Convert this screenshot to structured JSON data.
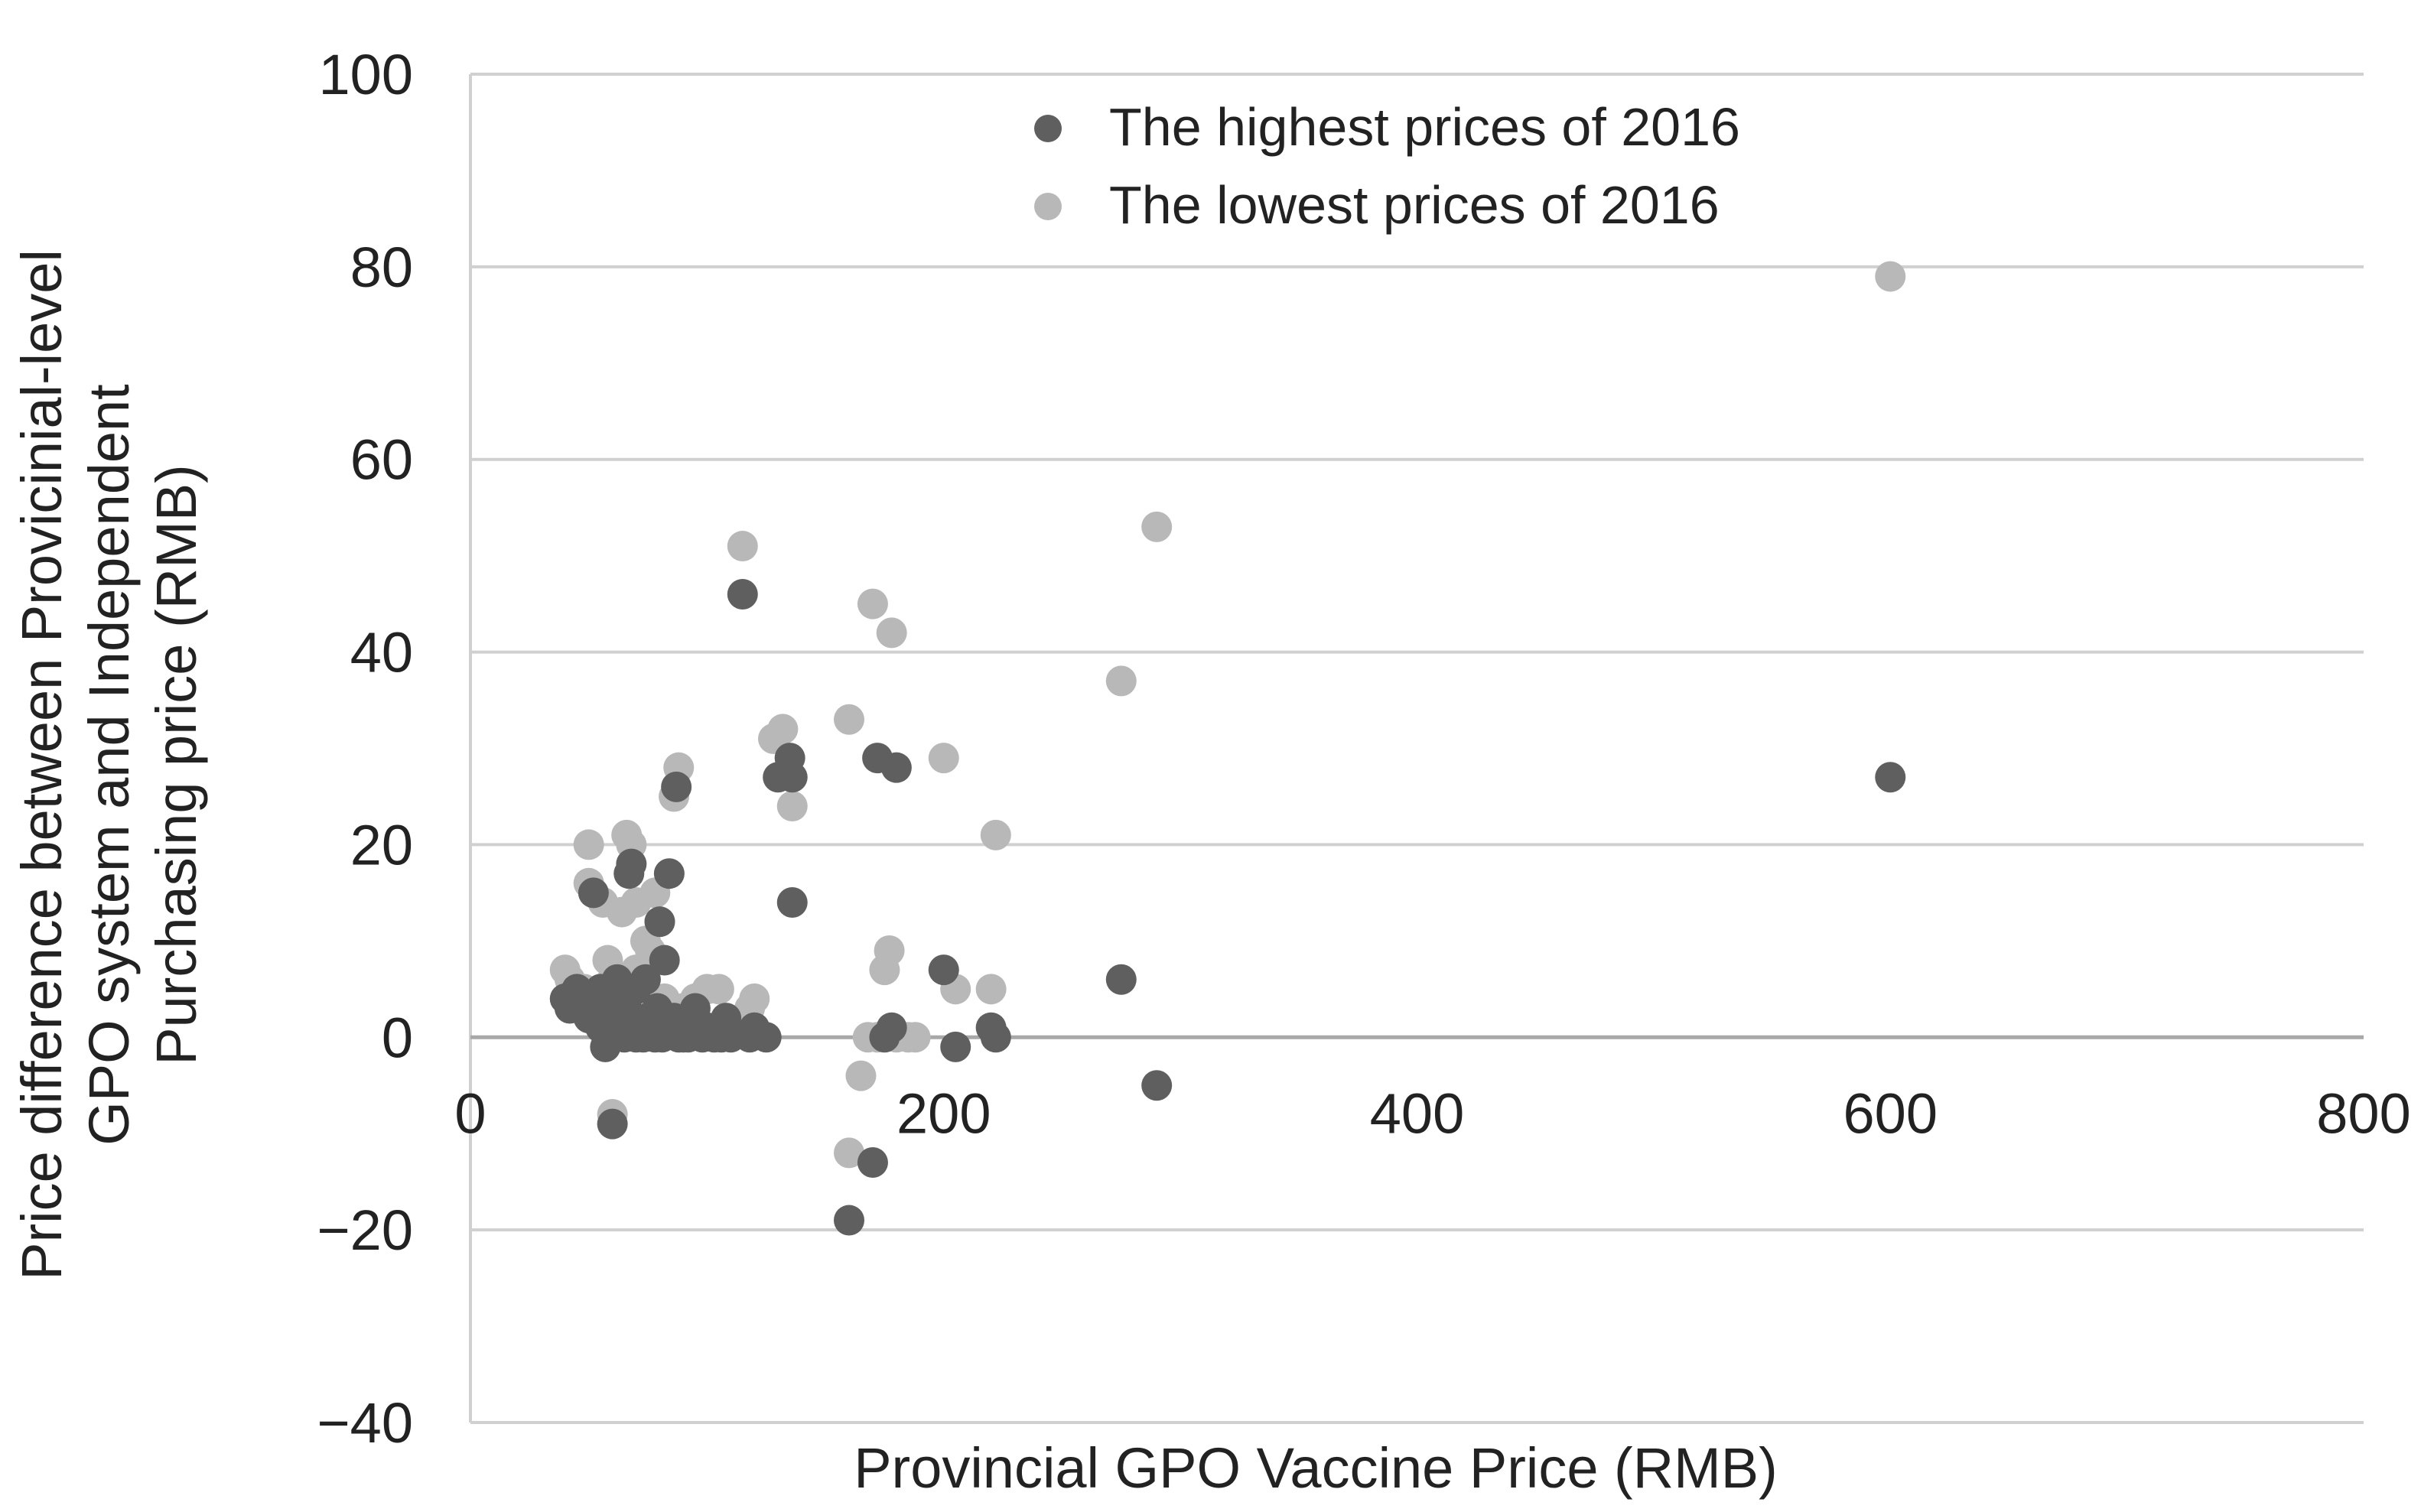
{
  "chart_data": {
    "type": "scatter",
    "title": "",
    "xlabel": "Provincial GPO Vaccine Price (RMB)",
    "ylabel_lines": [
      "Price difference between Provicinial-level",
      "GPO system and Independent",
      "Purchasing price (RMB)"
    ],
    "xlim": [
      0,
      800
    ],
    "ylim": [
      -40,
      100
    ],
    "x_ticks": [
      {
        "value": 0,
        "label": "0"
      },
      {
        "value": 200,
        "label": "200"
      },
      {
        "value": 400,
        "label": "400"
      },
      {
        "value": 600,
        "label": "600"
      },
      {
        "value": 800,
        "label": "800"
      }
    ],
    "y_ticks": [
      {
        "value": -40,
        "label": "−40"
      },
      {
        "value": -20,
        "label": "−20"
      },
      {
        "value": 0,
        "label": "0"
      },
      {
        "value": 20,
        "label": "20"
      },
      {
        "value": 40,
        "label": "40"
      },
      {
        "value": 60,
        "label": "60"
      },
      {
        "value": 80,
        "label": "80"
      },
      {
        "value": 100,
        "label": "100"
      }
    ],
    "grid": "horizontal",
    "legend_position": "top-center",
    "series": [
      {
        "name": "The highest prices of 2016",
        "color": "#5f5f5f",
        "points": [
          [
            40,
            4
          ],
          [
            42,
            3
          ],
          [
            45,
            5
          ],
          [
            48,
            4
          ],
          [
            50,
            2
          ],
          [
            52,
            15
          ],
          [
            55,
            1
          ],
          [
            55,
            5
          ],
          [
            57,
            -1
          ],
          [
            58,
            0
          ],
          [
            60,
            3
          ],
          [
            60,
            -9
          ],
          [
            62,
            2
          ],
          [
            62,
            6
          ],
          [
            65,
            0
          ],
          [
            65,
            4
          ],
          [
            66,
            3
          ],
          [
            67,
            17
          ],
          [
            68,
            18
          ],
          [
            70,
            0
          ],
          [
            70,
            5
          ],
          [
            72,
            1
          ],
          [
            73,
            0
          ],
          [
            74,
            6
          ],
          [
            75,
            2
          ],
          [
            76,
            1
          ],
          [
            78,
            0
          ],
          [
            79,
            3
          ],
          [
            80,
            12
          ],
          [
            80,
            2
          ],
          [
            81,
            0
          ],
          [
            82,
            8
          ],
          [
            84,
            17
          ],
          [
            86,
            2
          ],
          [
            87,
            26
          ],
          [
            88,
            0
          ],
          [
            90,
            0
          ],
          [
            92,
            0
          ],
          [
            95,
            3
          ],
          [
            98,
            0
          ],
          [
            100,
            1
          ],
          [
            103,
            0
          ],
          [
            106,
            0
          ],
          [
            108,
            2
          ],
          [
            110,
            0
          ],
          [
            115,
            46
          ],
          [
            118,
            0
          ],
          [
            120,
            1
          ],
          [
            125,
            0
          ],
          [
            130,
            27
          ],
          [
            135,
            29
          ],
          [
            136,
            27
          ],
          [
            136,
            14
          ],
          [
            160,
            -19
          ],
          [
            170,
            -13
          ],
          [
            172,
            29
          ],
          [
            180,
            28
          ],
          [
            175,
            0
          ],
          [
            178,
            1
          ],
          [
            200,
            7
          ],
          [
            205,
            -1
          ],
          [
            220,
            1
          ],
          [
            222,
            0
          ],
          [
            275,
            6
          ],
          [
            290,
            -5
          ],
          [
            600,
            27
          ]
        ]
      },
      {
        "name": "The lowest prices of 2016",
        "color": "#b8b8b8",
        "points": [
          [
            40,
            7
          ],
          [
            42,
            6
          ],
          [
            45,
            4
          ],
          [
            48,
            5
          ],
          [
            50,
            20
          ],
          [
            50,
            16
          ],
          [
            52,
            4
          ],
          [
            55,
            5
          ],
          [
            56,
            14
          ],
          [
            58,
            8
          ],
          [
            60,
            6
          ],
          [
            60,
            -8
          ],
          [
            62,
            3
          ],
          [
            64,
            13
          ],
          [
            66,
            21
          ],
          [
            68,
            20
          ],
          [
            70,
            7
          ],
          [
            70,
            14
          ],
          [
            72,
            2
          ],
          [
            74,
            10
          ],
          [
            76,
            9
          ],
          [
            78,
            15
          ],
          [
            80,
            12
          ],
          [
            82,
            4
          ],
          [
            84,
            3
          ],
          [
            86,
            25
          ],
          [
            88,
            28
          ],
          [
            90,
            3
          ],
          [
            92,
            1
          ],
          [
            95,
            4
          ],
          [
            100,
            5
          ],
          [
            105,
            5
          ],
          [
            115,
            51
          ],
          [
            118,
            3
          ],
          [
            120,
            4
          ],
          [
            128,
            31
          ],
          [
            132,
            32
          ],
          [
            136,
            24
          ],
          [
            160,
            33
          ],
          [
            160,
            -12
          ],
          [
            165,
            -4
          ],
          [
            168,
            0
          ],
          [
            170,
            45
          ],
          [
            172,
            0
          ],
          [
            175,
            7
          ],
          [
            177,
            9
          ],
          [
            178,
            42
          ],
          [
            180,
            0
          ],
          [
            185,
            0
          ],
          [
            188,
            0
          ],
          [
            200,
            29
          ],
          [
            205,
            5
          ],
          [
            220,
            5
          ],
          [
            222,
            21
          ],
          [
            275,
            37
          ],
          [
            290,
            53
          ],
          [
            600,
            79
          ]
        ]
      }
    ]
  }
}
